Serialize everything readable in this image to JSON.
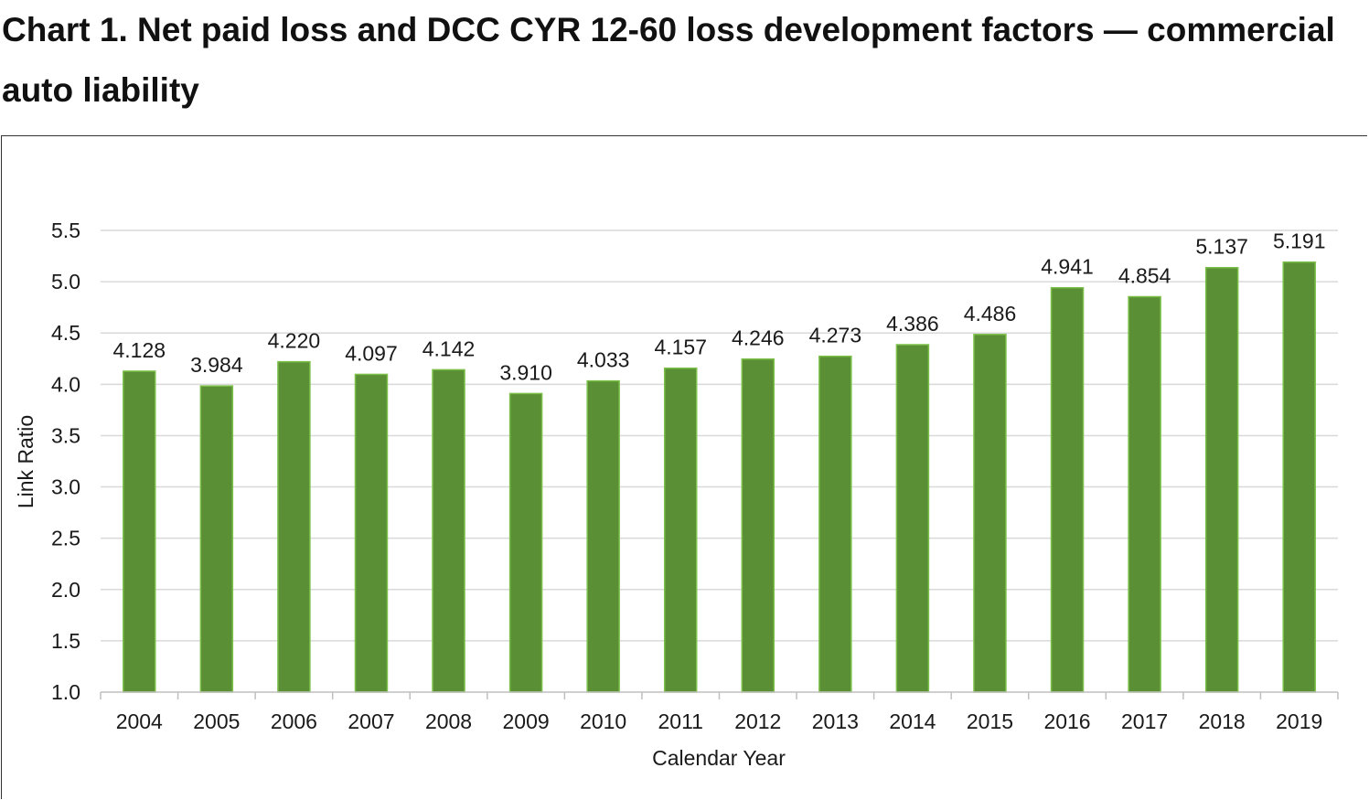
{
  "title": "Chart 1. Net paid loss and DCC CYR 12-60 loss development factors — commercial auto liability",
  "chart_data": {
    "type": "bar",
    "categories": [
      "2004",
      "2005",
      "2006",
      "2007",
      "2008",
      "2009",
      "2010",
      "2011",
      "2012",
      "2013",
      "2014",
      "2015",
      "2016",
      "2017",
      "2018",
      "2019"
    ],
    "values": [
      4.128,
      3.984,
      4.22,
      4.097,
      4.142,
      3.91,
      4.033,
      4.157,
      4.246,
      4.273,
      4.386,
      4.486,
      4.941,
      4.854,
      5.137,
      5.191
    ],
    "data_labels": [
      "4.128",
      "3.984",
      "4.220",
      "4.097",
      "4.142",
      "3.910",
      "4.033",
      "4.157",
      "4.246",
      "4.273",
      "4.386",
      "4.486",
      "4.941",
      "4.854",
      "5.137",
      "5.191"
    ],
    "xlabel": "Calendar Year",
    "ylabel": "Link Ratio",
    "ylim": [
      1.0,
      5.5
    ],
    "yticks": [
      1.0,
      1.5,
      2.0,
      2.5,
      3.0,
      3.5,
      4.0,
      4.5,
      5.0,
      5.5
    ],
    "ytick_labels": [
      "1.0",
      "1.5",
      "2.0",
      "2.5",
      "3.0",
      "3.5",
      "4.0",
      "4.5",
      "5.0",
      "5.5"
    ],
    "grid": true,
    "bar_color": "#5a8f35",
    "bar_edge_color": "#7cc04a",
    "grid_color": "#d9d9d9"
  }
}
